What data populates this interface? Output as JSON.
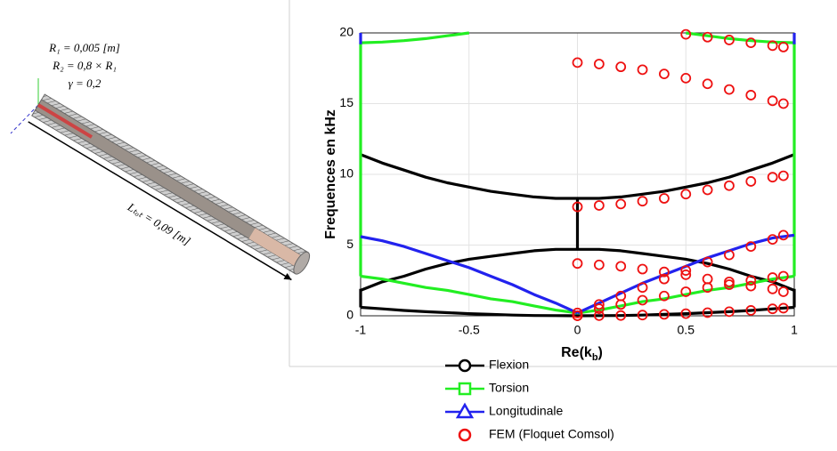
{
  "illustration": {
    "labels": [
      "R₁ = 0,005 [m]",
      "R₂ = 0,8 × R₁",
      "γ = 0,2",
      "Lₜₒₜ = 0,09 [m]"
    ]
  },
  "chart_data": {
    "type": "line",
    "ylabel": "Frequences en kHz",
    "xlabel": [
      "Re(k",
      "b",
      ")"
    ],
    "xlim": [
      -1,
      1
    ],
    "ylim": [
      0,
      20
    ],
    "xticks": [
      -1,
      -0.5,
      0,
      0.5,
      1
    ],
    "yticks": [
      0,
      5,
      10,
      15,
      20
    ],
    "grid": true,
    "legend": "bottom",
    "series": [
      {
        "name": "Flexion",
        "color": "#000000",
        "style": "line",
        "marker": "circle",
        "x": [
          -1,
          -0.9,
          -0.8,
          -0.7,
          -0.6,
          -0.5,
          -0.4,
          -0.3,
          -0.2,
          -0.1,
          0,
          null,
          0,
          0.1,
          0.2,
          0.3,
          0.4,
          0.5,
          0.6,
          0.7,
          0.8,
          0.9,
          1,
          null,
          -1,
          -0.9,
          -0.8,
          -0.7,
          -0.6,
          -0.5,
          -0.4,
          -0.3,
          -0.2,
          -0.1,
          0,
          null,
          0,
          0.1,
          0.2,
          0.3,
          0.4,
          0.5,
          0.6,
          0.7,
          0.8,
          0.9,
          1,
          null,
          -1,
          -0.9,
          -0.8,
          -0.7,
          -0.6,
          -0.5,
          -0.4,
          -0.3,
          -0.2,
          -0.1,
          0,
          0.1,
          0.2,
          0.3,
          0.4,
          0.5,
          0.6,
          0.7,
          0.8,
          0.9,
          1,
          null,
          0,
          0,
          null,
          -1,
          -1,
          null,
          1,
          1
        ],
        "values": [
          0.6,
          0.49,
          0.38,
          0.29,
          0.22,
          0.15,
          0.1,
          0.05,
          0.02,
          0.01,
          0,
          null,
          0,
          0.01,
          0.02,
          0.05,
          0.1,
          0.15,
          0.22,
          0.29,
          0.38,
          0.49,
          0.6,
          null,
          1.8,
          2.4,
          2.8,
          3.3,
          3.7,
          4,
          4.2,
          4.4,
          4.6,
          4.7,
          4.7,
          null,
          4.7,
          4.7,
          4.6,
          4.4,
          4.2,
          4,
          3.7,
          3.3,
          2.8,
          2.4,
          1.8,
          null,
          11.4,
          10.8,
          10.3,
          9.8,
          9.4,
          9.1,
          8.8,
          8.6,
          8.4,
          8.3,
          8.3,
          8.3,
          8.4,
          8.6,
          8.8,
          9.1,
          9.4,
          9.8,
          10.3,
          10.8,
          11.4,
          null,
          4.7,
          8.3,
          null,
          0.6,
          1.9,
          null,
          0.6,
          1.9
        ]
      },
      {
        "name": "Torsion",
        "color": "#22ee22",
        "style": "line",
        "marker": "square",
        "x": [
          -1,
          -0.9,
          -0.8,
          -0.7,
          -0.6,
          -0.5,
          -0.4,
          -0.3,
          -0.2,
          -0.1,
          0,
          null,
          0,
          0.1,
          0.2,
          0.3,
          0.4,
          0.5,
          0.6,
          0.7,
          0.8,
          0.9,
          1,
          null,
          -1,
          -0.9,
          -0.8,
          -0.7,
          -0.6,
          -0.5,
          null,
          0.5,
          0.6,
          0.7,
          0.8,
          0.9,
          1,
          null,
          -1,
          -1,
          null,
          1,
          1
        ],
        "values": [
          2.8,
          2.6,
          2.3,
          2,
          1.8,
          1.5,
          1.2,
          1,
          0.7,
          0.4,
          0.2,
          null,
          0.2,
          0.4,
          0.7,
          1,
          1.2,
          1.5,
          1.8,
          2,
          2.3,
          2.6,
          2.8,
          null,
          19.3,
          19.35,
          19.45,
          19.6,
          19.8,
          20,
          null,
          20,
          19.8,
          19.6,
          19.45,
          19.35,
          19.3,
          null,
          2.8,
          19.3,
          null,
          2.8,
          19.3
        ]
      },
      {
        "name": "Longitudinale",
        "color": "#2222ee",
        "style": "line",
        "marker": "triangle",
        "x": [
          -1,
          -0.9,
          -0.8,
          -0.7,
          -0.6,
          -0.5,
          -0.4,
          -0.3,
          -0.2,
          -0.1,
          0,
          null,
          0,
          0.1,
          0.2,
          0.3,
          0.4,
          0.5,
          0.6,
          0.7,
          0.8,
          0.9,
          1,
          null,
          -1,
          -1,
          null,
          1,
          1
        ],
        "values": [
          5.6,
          5.3,
          4.9,
          4.4,
          3.9,
          3.4,
          2.8,
          2.2,
          1.5,
          0.9,
          0.2,
          null,
          0.2,
          0.9,
          1.6,
          2.3,
          2.9,
          3.5,
          4.1,
          4.6,
          5.1,
          5.5,
          5.7,
          null,
          19.2,
          20,
          null,
          19.2,
          20
        ]
      },
      {
        "name": "FEM (Floquet Comsol)",
        "color": "#ee1111",
        "style": "scatter",
        "marker": "circle",
        "x": [
          0,
          0.1,
          0.2,
          0.3,
          0.4,
          0.5,
          0.6,
          0.7,
          0.8,
          0.9,
          0.95,
          0,
          0.1,
          0.2,
          0.3,
          0.4,
          0.5,
          0.6,
          0.7,
          0.8,
          0.9,
          0.95,
          0,
          0.1,
          0.2,
          0.3,
          0.4,
          0.5,
          0.6,
          0.7,
          0.8,
          0.9,
          0.95,
          0,
          0.1,
          0.2,
          0.3,
          0.4,
          0.5,
          0.6,
          0.7,
          0.8,
          0.9,
          0.95,
          0,
          0.1,
          0.2,
          0.3,
          0.4,
          0.5,
          0.6,
          0.7,
          0.8,
          0.9,
          0.95,
          0,
          0.1,
          0.2,
          0.3,
          0.4,
          0.5,
          0.6,
          0.7,
          0.8,
          0.9,
          0.95,
          0.5,
          0.6,
          0.7,
          0.8,
          0.9,
          0.95
        ],
        "values": [
          0,
          0.01,
          0.02,
          0.05,
          0.1,
          0.15,
          0.22,
          0.29,
          0.38,
          0.49,
          0.54,
          0,
          0.5,
          0.8,
          1.1,
          1.4,
          1.7,
          2,
          2.2,
          2.5,
          2.7,
          2.8,
          3.7,
          3.6,
          3.5,
          3.3,
          3.1,
          2.9,
          2.6,
          2.4,
          2.1,
          1.9,
          1.7,
          0.2,
          0.8,
          1.4,
          2,
          2.6,
          3.2,
          3.8,
          4.3,
          4.9,
          5.4,
          5.7,
          7.7,
          7.8,
          7.9,
          8.1,
          8.3,
          8.6,
          8.9,
          9.2,
          9.5,
          9.8,
          9.9,
          17.9,
          17.8,
          17.6,
          17.4,
          17.1,
          16.8,
          16.4,
          16,
          15.6,
          15.2,
          15,
          19.9,
          19.7,
          19.5,
          19.3,
          19.1,
          19
        ]
      }
    ]
  }
}
